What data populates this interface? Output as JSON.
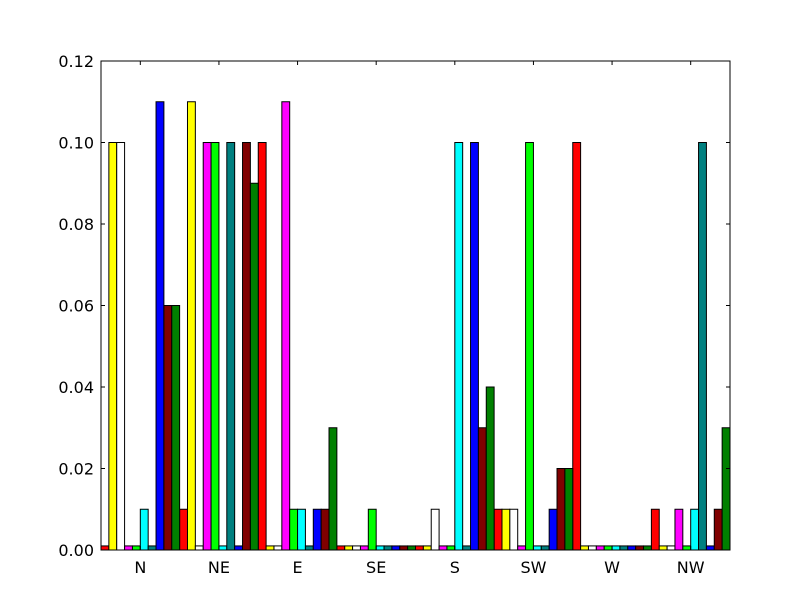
{
  "chart_data": {
    "type": "bar",
    "categories": [
      "N",
      "NE",
      "E",
      "SE",
      "S",
      "SW",
      "W",
      "NW"
    ],
    "ylim": [
      0,
      0.12
    ],
    "yticks": [
      0.0,
      0.02,
      0.04,
      0.06,
      0.08,
      0.1,
      0.12
    ],
    "ytick_labels": [
      "0.00",
      "0.02",
      "0.04",
      "0.06",
      "0.08",
      "0.10",
      "0.12"
    ],
    "grid": false,
    "legend": "none",
    "title": "",
    "xlabel": "",
    "ylabel": "",
    "series": [
      {
        "color": "#ff0000",
        "values": [
          0.001,
          0.01,
          0.1,
          0.001,
          0.001,
          0.01,
          0.1,
          0.01
        ]
      },
      {
        "color": "#ffff00",
        "values": [
          0.1,
          0.11,
          0.001,
          0.001,
          0.001,
          0.01,
          0.001,
          0.001
        ]
      },
      {
        "color": "#ffffff",
        "values": [
          0.1,
          0.001,
          0.001,
          0.001,
          0.01,
          0.01,
          0.001,
          0.001
        ]
      },
      {
        "color": "#ff00ff",
        "values": [
          0.001,
          0.1,
          0.11,
          0.001,
          0.001,
          0.001,
          0.001,
          0.01
        ]
      },
      {
        "color": "#00ff00",
        "values": [
          0.001,
          0.1,
          0.01,
          0.01,
          0.001,
          0.1,
          0.001,
          0.001
        ]
      },
      {
        "color": "#00ffff",
        "values": [
          0.01,
          0.001,
          0.01,
          0.001,
          0.1,
          0.001,
          0.001,
          0.01
        ]
      },
      {
        "color": "#008080",
        "values": [
          0.001,
          0.1,
          0.001,
          0.001,
          0.001,
          0.001,
          0.001,
          0.1
        ]
      },
      {
        "color": "#0000ff",
        "values": [
          0.11,
          0.001,
          0.01,
          0.001,
          0.1,
          0.01,
          0.001,
          0.001
        ]
      },
      {
        "color": "#800000",
        "values": [
          0.06,
          0.1,
          0.01,
          0.001,
          0.03,
          0.02,
          0.001,
          0.01
        ]
      },
      {
        "color": "#008000",
        "values": [
          0.06,
          0.09,
          0.03,
          0.001,
          0.04,
          0.02,
          0.001,
          0.03
        ]
      }
    ]
  }
}
